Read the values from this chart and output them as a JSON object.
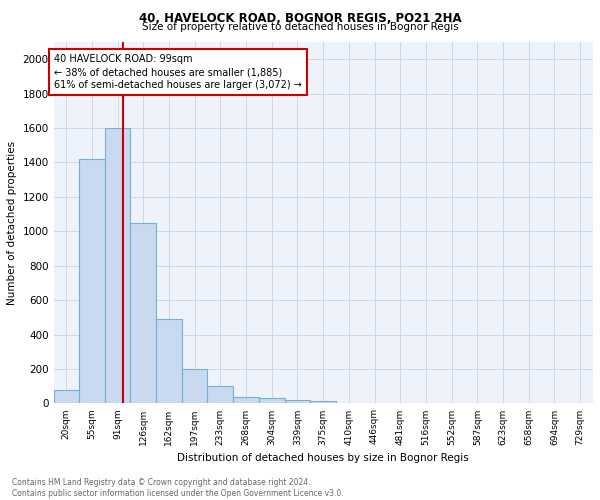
{
  "title1": "40, HAVELOCK ROAD, BOGNOR REGIS, PO21 2HA",
  "title2": "Size of property relative to detached houses in Bognor Regis",
  "xlabel": "Distribution of detached houses by size in Bognor Regis",
  "ylabel": "Number of detached properties",
  "bin_labels": [
    "20sqm",
    "55sqm",
    "91sqm",
    "126sqm",
    "162sqm",
    "197sqm",
    "233sqm",
    "268sqm",
    "304sqm",
    "339sqm",
    "375sqm",
    "410sqm",
    "446sqm",
    "481sqm",
    "516sqm",
    "552sqm",
    "587sqm",
    "623sqm",
    "658sqm",
    "694sqm",
    "729sqm"
  ],
  "bar_heights": [
    80,
    1420,
    1600,
    1050,
    490,
    200,
    100,
    40,
    30,
    20,
    15,
    0,
    0,
    0,
    0,
    0,
    0,
    0,
    0,
    0,
    0
  ],
  "bar_color": "#c8d9f0",
  "bar_edge_color": "#7aadd4",
  "grid_color": "#d0d8e8",
  "bg_color": "#eef3fb",
  "bin_edges": [
    2.5,
    37.5,
    73.0,
    108.5,
    144.0,
    179.5,
    215.0,
    250.5,
    286.0,
    321.5,
    357.0,
    392.5,
    428.0,
    463.5,
    499.0,
    534.5,
    570.0,
    605.5,
    641.0,
    676.5,
    712.0,
    747.5
  ],
  "annotation_line1": "40 HAVELOCK ROAD: 99sqm",
  "annotation_line2": "← 38% of detached houses are smaller (1,885)",
  "annotation_line3": "61% of semi-detached houses are larger (3,072) →",
  "ylim": [
    0,
    2100
  ],
  "yticks": [
    0,
    200,
    400,
    600,
    800,
    1000,
    1200,
    1400,
    1600,
    1800,
    2000
  ],
  "footnote": "Contains HM Land Registry data © Crown copyright and database right 2024.\nContains public sector information licensed under the Open Government Licence v3.0.",
  "red_line_color": "#cc0000",
  "annotation_box_color": "#cc0000",
  "red_line_sqm": 99,
  "bin_sqm_centers": [
    20,
    55,
    91,
    126,
    162,
    197,
    233,
    268,
    304,
    339,
    375,
    410,
    446,
    481,
    516,
    552,
    587,
    623,
    658,
    694,
    729
  ]
}
